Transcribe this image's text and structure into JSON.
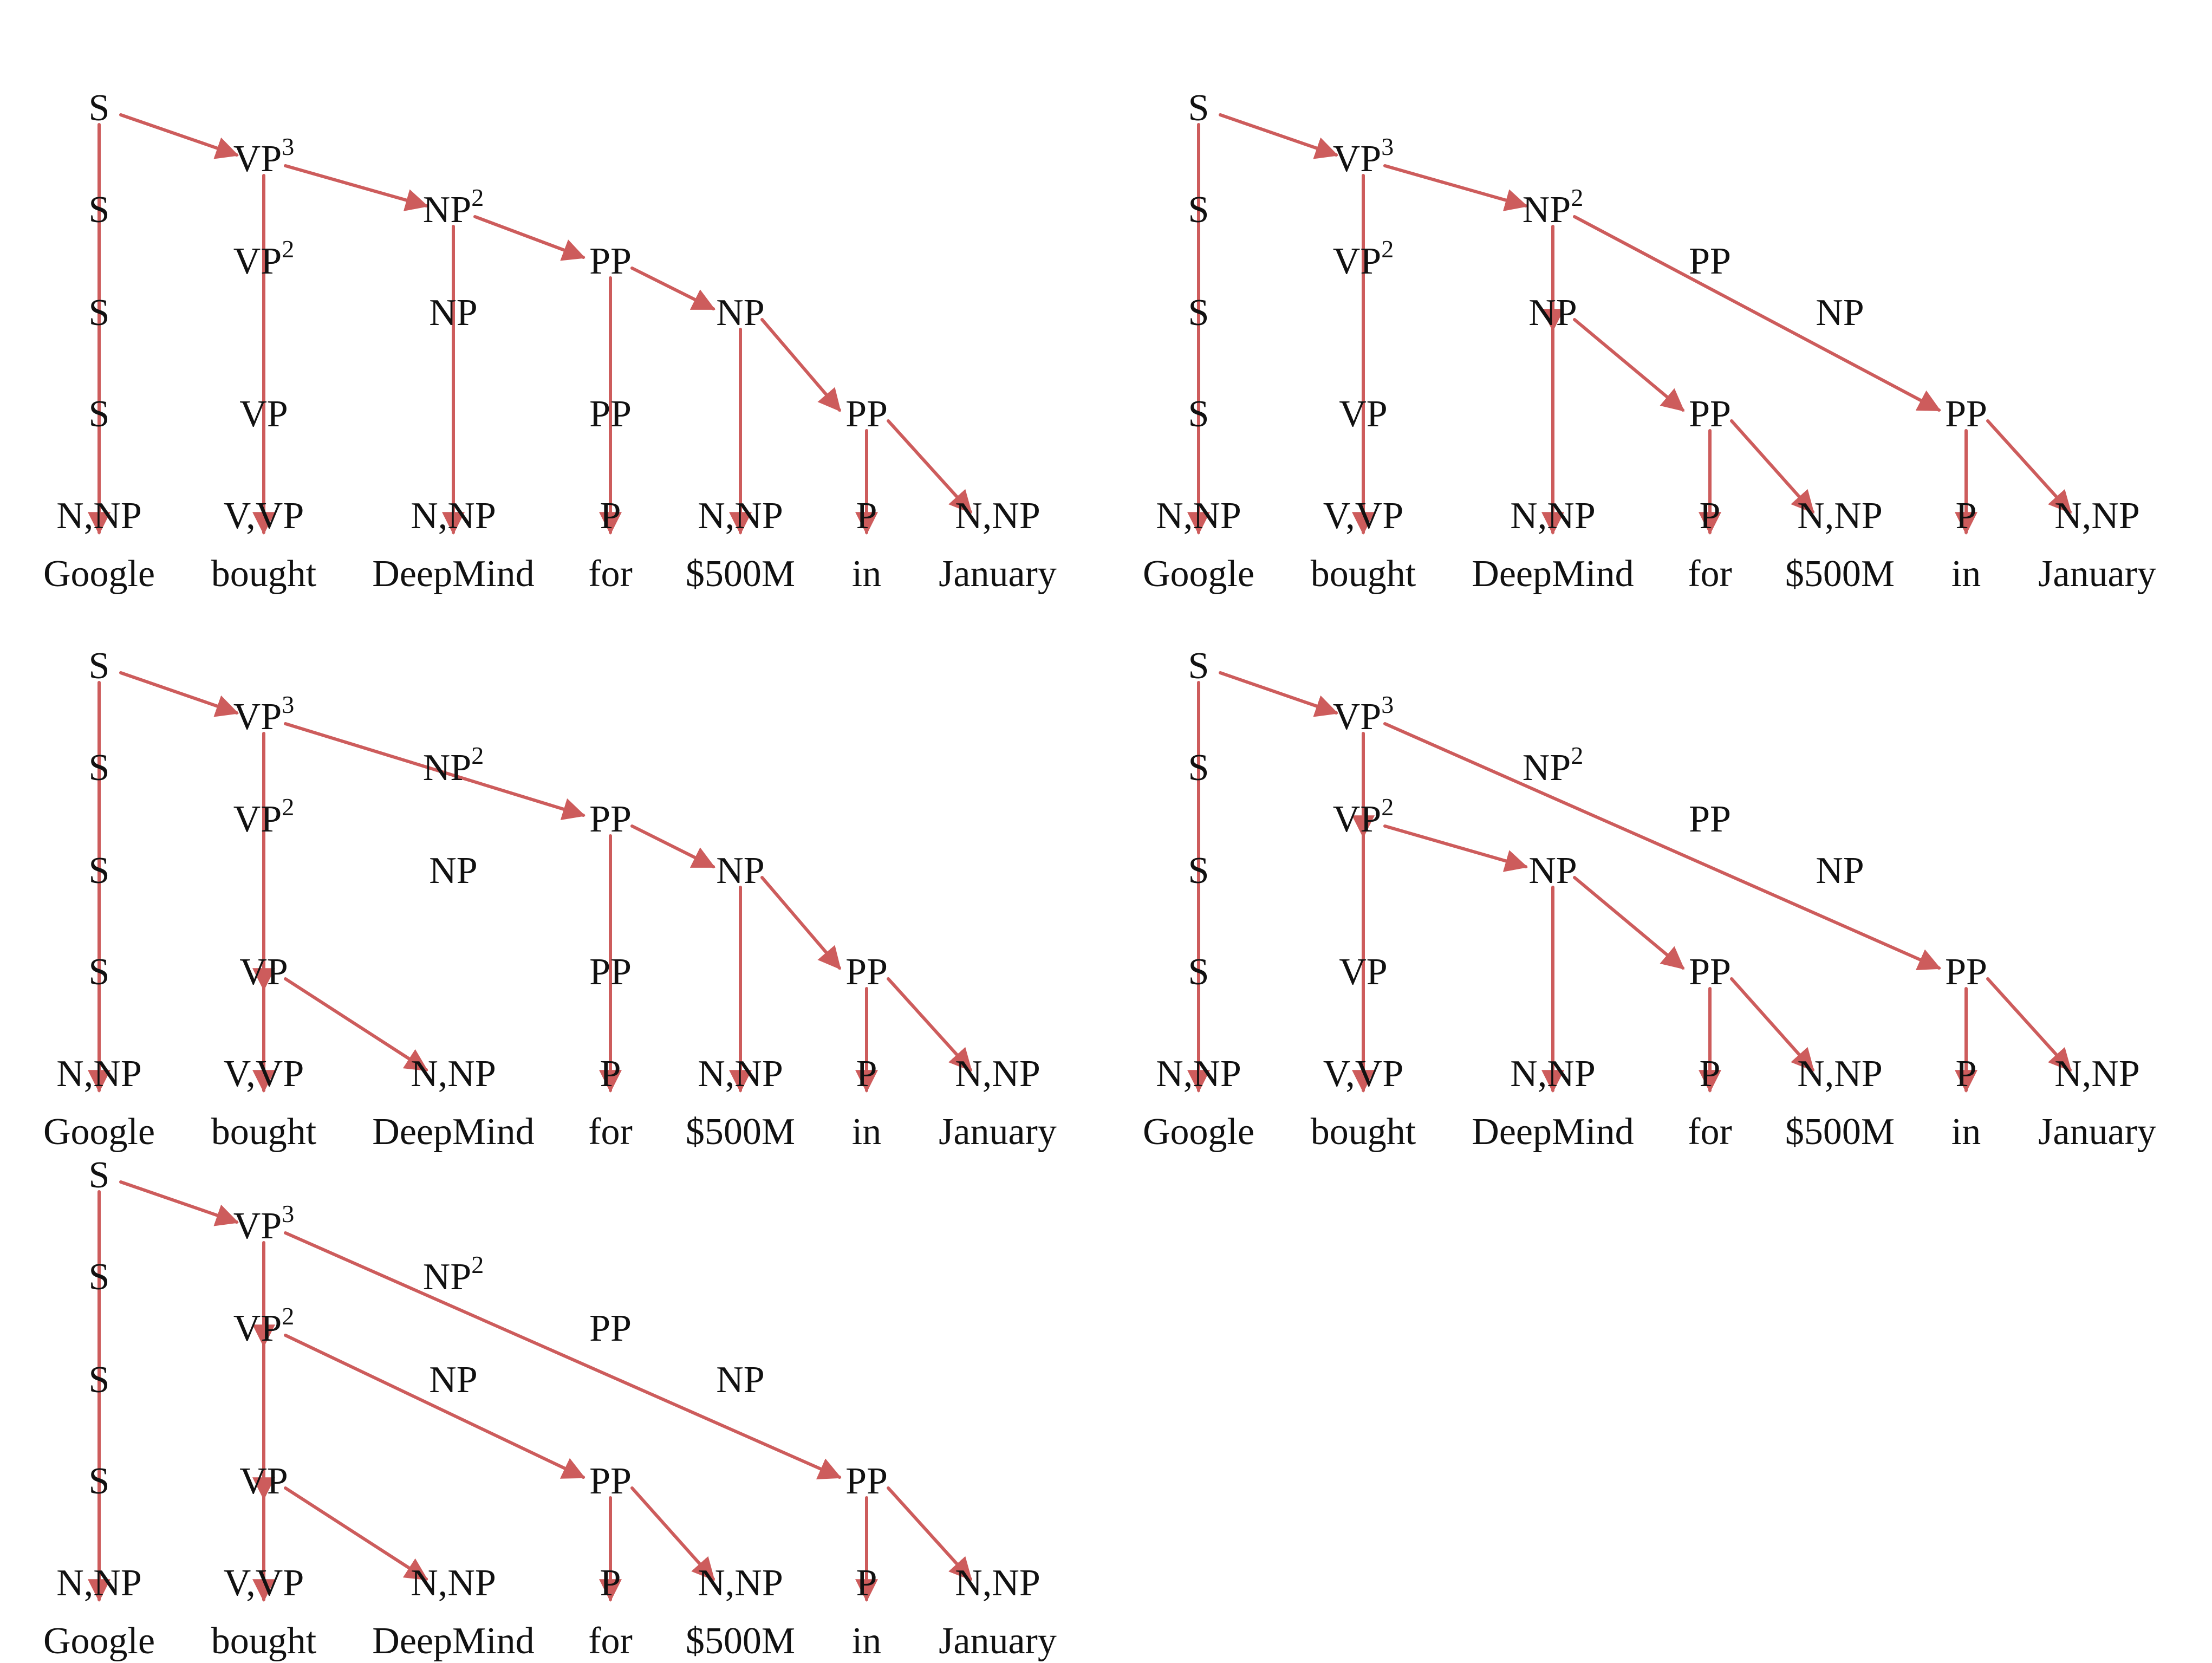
{
  "style": {
    "arrow_color": "#cd5c5c",
    "text_color": "#111111"
  },
  "words": [
    "Google",
    "bought",
    "DeepMind",
    "for",
    "$500M",
    "in",
    "January"
  ],
  "panels": [
    {
      "nodes": [
        {
          "id": "S",
          "label": "S",
          "sup": "",
          "col": 0,
          "row": 0
        },
        {
          "id": "S1",
          "label": "S",
          "sup": "",
          "col": 0,
          "row": 1
        },
        {
          "id": "S2",
          "label": "S",
          "sup": "",
          "col": 0,
          "row": 2
        },
        {
          "id": "S3",
          "label": "S",
          "sup": "",
          "col": 0,
          "row": 3
        },
        {
          "id": "G",
          "label": "N,NP",
          "sup": "",
          "col": 0,
          "row": 4
        },
        {
          "id": "VP3",
          "label": "VP",
          "sup": "3",
          "col": 1,
          "row": 0.5
        },
        {
          "id": "VP2",
          "label": "VP",
          "sup": "2",
          "col": 1,
          "row": 1.5
        },
        {
          "id": "VP",
          "label": "VP",
          "sup": "",
          "col": 1,
          "row": 3
        },
        {
          "id": "B",
          "label": "V,VP",
          "sup": "",
          "col": 1,
          "row": 4
        },
        {
          "id": "NP2",
          "label": "NP",
          "sup": "2",
          "col": 2,
          "row": 1
        },
        {
          "id": "NPa",
          "label": "NP",
          "sup": "",
          "col": 2,
          "row": 2
        },
        {
          "id": "D",
          "label": "N,NP",
          "sup": "",
          "col": 2,
          "row": 4
        },
        {
          "id": "PP1",
          "label": "PP",
          "sup": "",
          "col": 3,
          "row": 1.5
        },
        {
          "id": "PP1b",
          "label": "PP",
          "sup": "",
          "col": 3,
          "row": 3
        },
        {
          "id": "F",
          "label": "P",
          "sup": "",
          "col": 3,
          "row": 4
        },
        {
          "id": "NPb",
          "label": "NP",
          "sup": "",
          "col": 4,
          "row": 2
        },
        {
          "id": "M",
          "label": "N,NP",
          "sup": "",
          "col": 4,
          "row": 4
        },
        {
          "id": "PP2",
          "label": "PP",
          "sup": "",
          "col": 5,
          "row": 3
        },
        {
          "id": "I",
          "label": "P",
          "sup": "",
          "col": 5,
          "row": 4
        },
        {
          "id": "J",
          "label": "N,NP",
          "sup": "",
          "col": 6,
          "row": 4
        }
      ],
      "edges": [
        [
          "S",
          "VP3"
        ],
        [
          "S",
          "G"
        ],
        [
          "VP3",
          "NP2"
        ],
        [
          "VP3",
          "B"
        ],
        [
          "NP2",
          "PP1"
        ],
        [
          "NP2",
          "D"
        ],
        [
          "PP1",
          "NPb"
        ],
        [
          "PP1",
          "F"
        ],
        [
          "NPb",
          "PP2"
        ],
        [
          "NPb",
          "M"
        ],
        [
          "PP2",
          "J"
        ],
        [
          "PP2",
          "I"
        ]
      ]
    },
    {
      "nodes": [
        {
          "id": "S",
          "label": "S",
          "sup": "",
          "col": 0,
          "row": 0
        },
        {
          "id": "S1",
          "label": "S",
          "sup": "",
          "col": 0,
          "row": 1
        },
        {
          "id": "S2",
          "label": "S",
          "sup": "",
          "col": 0,
          "row": 2
        },
        {
          "id": "S3",
          "label": "S",
          "sup": "",
          "col": 0,
          "row": 3
        },
        {
          "id": "G",
          "label": "N,NP",
          "sup": "",
          "col": 0,
          "row": 4
        },
        {
          "id": "VP3",
          "label": "VP",
          "sup": "3",
          "col": 1,
          "row": 0.5
        },
        {
          "id": "VP2",
          "label": "VP",
          "sup": "2",
          "col": 1,
          "row": 1.5
        },
        {
          "id": "VP",
          "label": "VP",
          "sup": "",
          "col": 1,
          "row": 3
        },
        {
          "id": "B",
          "label": "V,VP",
          "sup": "",
          "col": 1,
          "row": 4
        },
        {
          "id": "NP2",
          "label": "NP",
          "sup": "2",
          "col": 2,
          "row": 1
        },
        {
          "id": "NPa",
          "label": "NP",
          "sup": "",
          "col": 2,
          "row": 2
        },
        {
          "id": "D",
          "label": "N,NP",
          "sup": "",
          "col": 2,
          "row": 4
        },
        {
          "id": "PP3",
          "label": "PP",
          "sup": "",
          "col": 3,
          "row": 3
        },
        {
          "id": "F",
          "label": "P",
          "sup": "",
          "col": 3,
          "row": 4
        },
        {
          "id": "M",
          "label": "N,NP",
          "sup": "",
          "col": 4,
          "row": 4
        },
        {
          "id": "PPm",
          "label": "PP",
          "sup": "",
          "col": 3,
          "row": 1.5
        },
        {
          "id": "NPm",
          "label": "NP",
          "sup": "",
          "col": 4,
          "row": 2
        },
        {
          "id": "PP2",
          "label": "PP",
          "sup": "",
          "col": 5,
          "row": 3
        },
        {
          "id": "I",
          "label": "P",
          "sup": "",
          "col": 5,
          "row": 4
        },
        {
          "id": "J",
          "label": "N,NP",
          "sup": "",
          "col": 6,
          "row": 4
        }
      ],
      "edges": [
        [
          "S",
          "VP3"
        ],
        [
          "S",
          "G"
        ],
        [
          "VP3",
          "NP2"
        ],
        [
          "VP3",
          "B"
        ],
        [
          "NP2",
          "NPa"
        ],
        [
          "NPa",
          "D"
        ],
        [
          "NPa",
          "PP3"
        ],
        [
          "PP3",
          "M"
        ],
        [
          "PP3",
          "F"
        ],
        [
          "NP2",
          "PP2"
        ],
        [
          "PP2",
          "J"
        ],
        [
          "PP2",
          "I"
        ]
      ]
    },
    {
      "nodes": [
        {
          "id": "S",
          "label": "S",
          "sup": "",
          "col": 0,
          "row": 0
        },
        {
          "id": "S1",
          "label": "S",
          "sup": "",
          "col": 0,
          "row": 1
        },
        {
          "id": "S2",
          "label": "S",
          "sup": "",
          "col": 0,
          "row": 2
        },
        {
          "id": "S3",
          "label": "S",
          "sup": "",
          "col": 0,
          "row": 3
        },
        {
          "id": "G",
          "label": "N,NP",
          "sup": "",
          "col": 0,
          "row": 4
        },
        {
          "id": "VP3",
          "label": "VP",
          "sup": "3",
          "col": 1,
          "row": 0.5
        },
        {
          "id": "VP2",
          "label": "VP",
          "sup": "2",
          "col": 1,
          "row": 1.5
        },
        {
          "id": "VP",
          "label": "VP",
          "sup": "",
          "col": 1,
          "row": 3
        },
        {
          "id": "B",
          "label": "V,VP",
          "sup": "",
          "col": 1,
          "row": 4
        },
        {
          "id": "NP2m",
          "label": "NP",
          "sup": "2",
          "col": 2,
          "row": 1
        },
        {
          "id": "NPm",
          "label": "NP",
          "sup": "",
          "col": 2,
          "row": 2
        },
        {
          "id": "D",
          "label": "N,NP",
          "sup": "",
          "col": 2,
          "row": 4
        },
        {
          "id": "PP1",
          "label": "PP",
          "sup": "",
          "col": 3,
          "row": 1.5
        },
        {
          "id": "PP1b",
          "label": "PP",
          "sup": "",
          "col": 3,
          "row": 3
        },
        {
          "id": "F",
          "label": "P",
          "sup": "",
          "col": 3,
          "row": 4
        },
        {
          "id": "NPb",
          "label": "NP",
          "sup": "",
          "col": 4,
          "row": 2
        },
        {
          "id": "M",
          "label": "N,NP",
          "sup": "",
          "col": 4,
          "row": 4
        },
        {
          "id": "PP2",
          "label": "PP",
          "sup": "",
          "col": 5,
          "row": 3
        },
        {
          "id": "I",
          "label": "P",
          "sup": "",
          "col": 5,
          "row": 4
        },
        {
          "id": "J",
          "label": "N,NP",
          "sup": "",
          "col": 6,
          "row": 4
        }
      ],
      "edges": [
        [
          "S",
          "VP3"
        ],
        [
          "S",
          "G"
        ],
        [
          "VP3",
          "PP1"
        ],
        [
          "VP3",
          "VP"
        ],
        [
          "VP",
          "D"
        ],
        [
          "VP",
          "B"
        ],
        [
          "PP1",
          "NPb"
        ],
        [
          "PP1",
          "F"
        ],
        [
          "NPb",
          "PP2"
        ],
        [
          "NPb",
          "M"
        ],
        [
          "PP2",
          "J"
        ],
        [
          "PP2",
          "I"
        ]
      ]
    },
    {
      "nodes": [
        {
          "id": "S",
          "label": "S",
          "sup": "",
          "col": 0,
          "row": 0
        },
        {
          "id": "S1",
          "label": "S",
          "sup": "",
          "col": 0,
          "row": 1
        },
        {
          "id": "S2",
          "label": "S",
          "sup": "",
          "col": 0,
          "row": 2
        },
        {
          "id": "S3",
          "label": "S",
          "sup": "",
          "col": 0,
          "row": 3
        },
        {
          "id": "G",
          "label": "N,NP",
          "sup": "",
          "col": 0,
          "row": 4
        },
        {
          "id": "VP3",
          "label": "VP",
          "sup": "3",
          "col": 1,
          "row": 0.5
        },
        {
          "id": "VP2",
          "label": "VP",
          "sup": "2",
          "col": 1,
          "row": 1.5
        },
        {
          "id": "VP",
          "label": "VP",
          "sup": "",
          "col": 1,
          "row": 3
        },
        {
          "id": "B",
          "label": "V,VP",
          "sup": "",
          "col": 1,
          "row": 4
        },
        {
          "id": "NP2m",
          "label": "NP",
          "sup": "2",
          "col": 2,
          "row": 1
        },
        {
          "id": "NPa",
          "label": "NP",
          "sup": "",
          "col": 2,
          "row": 2
        },
        {
          "id": "D",
          "label": "N,NP",
          "sup": "",
          "col": 2,
          "row": 4
        },
        {
          "id": "PPm",
          "label": "PP",
          "sup": "",
          "col": 3,
          "row": 1.5
        },
        {
          "id": "PP3",
          "label": "PP",
          "sup": "",
          "col": 3,
          "row": 3
        },
        {
          "id": "F",
          "label": "P",
          "sup": "",
          "col": 3,
          "row": 4
        },
        {
          "id": "NPm",
          "label": "NP",
          "sup": "",
          "col": 4,
          "row": 2
        },
        {
          "id": "M",
          "label": "N,NP",
          "sup": "",
          "col": 4,
          "row": 4
        },
        {
          "id": "PP2",
          "label": "PP",
          "sup": "",
          "col": 5,
          "row": 3
        },
        {
          "id": "I",
          "label": "P",
          "sup": "",
          "col": 5,
          "row": 4
        },
        {
          "id": "J",
          "label": "N,NP",
          "sup": "",
          "col": 6,
          "row": 4
        }
      ],
      "edges": [
        [
          "S",
          "VP3"
        ],
        [
          "S",
          "G"
        ],
        [
          "VP3",
          "VP2"
        ],
        [
          "VP3",
          "PP2"
        ],
        [
          "VP2",
          "NPa"
        ],
        [
          "VP2",
          "B"
        ],
        [
          "NPa",
          "D"
        ],
        [
          "NPa",
          "PP3"
        ],
        [
          "PP3",
          "M"
        ],
        [
          "PP3",
          "F"
        ],
        [
          "PP2",
          "J"
        ],
        [
          "PP2",
          "I"
        ]
      ]
    },
    {
      "nodes": [
        {
          "id": "S",
          "label": "S",
          "sup": "",
          "col": 0,
          "row": 0
        },
        {
          "id": "S1",
          "label": "S",
          "sup": "",
          "col": 0,
          "row": 1
        },
        {
          "id": "S2",
          "label": "S",
          "sup": "",
          "col": 0,
          "row": 2
        },
        {
          "id": "S3",
          "label": "S",
          "sup": "",
          "col": 0,
          "row": 3
        },
        {
          "id": "G",
          "label": "N,NP",
          "sup": "",
          "col": 0,
          "row": 4
        },
        {
          "id": "VP3",
          "label": "VP",
          "sup": "3",
          "col": 1,
          "row": 0.5
        },
        {
          "id": "VP2",
          "label": "VP",
          "sup": "2",
          "col": 1,
          "row": 1.5
        },
        {
          "id": "VP",
          "label": "VP",
          "sup": "",
          "col": 1,
          "row": 3
        },
        {
          "id": "B",
          "label": "V,VP",
          "sup": "",
          "col": 1,
          "row": 4
        },
        {
          "id": "NP2m",
          "label": "NP",
          "sup": "2",
          "col": 2,
          "row": 1
        },
        {
          "id": "NPm",
          "label": "NP",
          "sup": "",
          "col": 2,
          "row": 2
        },
        {
          "id": "D",
          "label": "N,NP",
          "sup": "",
          "col": 2,
          "row": 4
        },
        {
          "id": "PPm",
          "label": "PP",
          "sup": "",
          "col": 3,
          "row": 1.5
        },
        {
          "id": "PP1b",
          "label": "PP",
          "sup": "",
          "col": 3,
          "row": 3
        },
        {
          "id": "F",
          "label": "P",
          "sup": "",
          "col": 3,
          "row": 4
        },
        {
          "id": "NPb",
          "label": "NP",
          "sup": "",
          "col": 4,
          "row": 2
        },
        {
          "id": "M",
          "label": "N,NP",
          "sup": "",
          "col": 4,
          "row": 4
        },
        {
          "id": "PP2",
          "label": "PP",
          "sup": "",
          "col": 5,
          "row": 3
        },
        {
          "id": "I",
          "label": "P",
          "sup": "",
          "col": 5,
          "row": 4
        },
        {
          "id": "J",
          "label": "N,NP",
          "sup": "",
          "col": 6,
          "row": 4
        }
      ],
      "edges": [
        [
          "S",
          "VP3"
        ],
        [
          "S",
          "G"
        ],
        [
          "VP3",
          "VP2"
        ],
        [
          "VP3",
          "PP2"
        ],
        [
          "VP2",
          "VP"
        ],
        [
          "VP2",
          "PP1b"
        ],
        [
          "VP",
          "D"
        ],
        [
          "VP",
          "B"
        ],
        [
          "PP1b",
          "M"
        ],
        [
          "PP1b",
          "F"
        ],
        [
          "PP2",
          "J"
        ],
        [
          "PP2",
          "I"
        ]
      ]
    }
  ]
}
